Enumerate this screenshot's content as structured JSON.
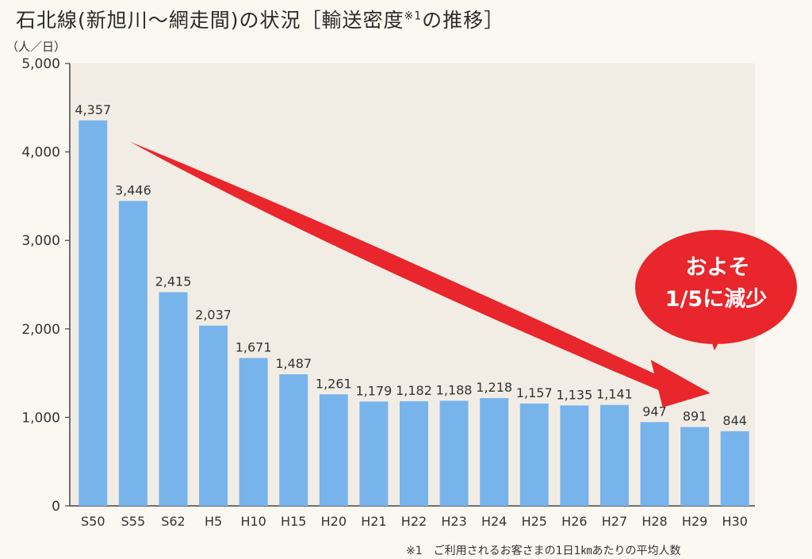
{
  "page": {
    "title": "石北線(新旭川〜網走間)の状況［輸送密度",
    "title_mark": "※1",
    "title_end": "の推移］",
    "unit": "（人／日）",
    "footnote": "※1　ご利用されるお客さまの1日1㎞あたりの平均人数"
  },
  "colors": {
    "plot_bg": "#f2ede4",
    "bar": "#78b4ec",
    "arrow": "#e8262b",
    "axis": "#444444"
  },
  "chart_data": {
    "type": "bar",
    "categories": [
      "S50",
      "S55",
      "S62",
      "H5",
      "H10",
      "H15",
      "H20",
      "H21",
      "H22",
      "H23",
      "H24",
      "H25",
      "H26",
      "H27",
      "H28",
      "H29",
      "H30"
    ],
    "values": [
      4357,
      3446,
      2415,
      2037,
      1671,
      1487,
      1261,
      1179,
      1182,
      1188,
      1218,
      1157,
      1135,
      1141,
      947,
      891,
      844
    ],
    "value_labels": [
      "4,357",
      "3,446",
      "2,415",
      "2,037",
      "1,671",
      "1,487",
      "1,261",
      "1,179",
      "1,182",
      "1,188",
      "1,218",
      "1,157",
      "1,135",
      "1,141",
      "947",
      "891",
      "844"
    ],
    "yticks": [
      0,
      1000,
      2000,
      3000,
      4000,
      5000
    ],
    "ytick_labels": [
      "0",
      "1,000",
      "2,000",
      "3,000",
      "4,000",
      "5,000"
    ],
    "ylim": [
      0,
      5000
    ],
    "grid": false,
    "annotation": {
      "line1": "およそ",
      "line2": "1/5に減少",
      "arrow_from": "S55",
      "arrow_to": "H30"
    }
  }
}
